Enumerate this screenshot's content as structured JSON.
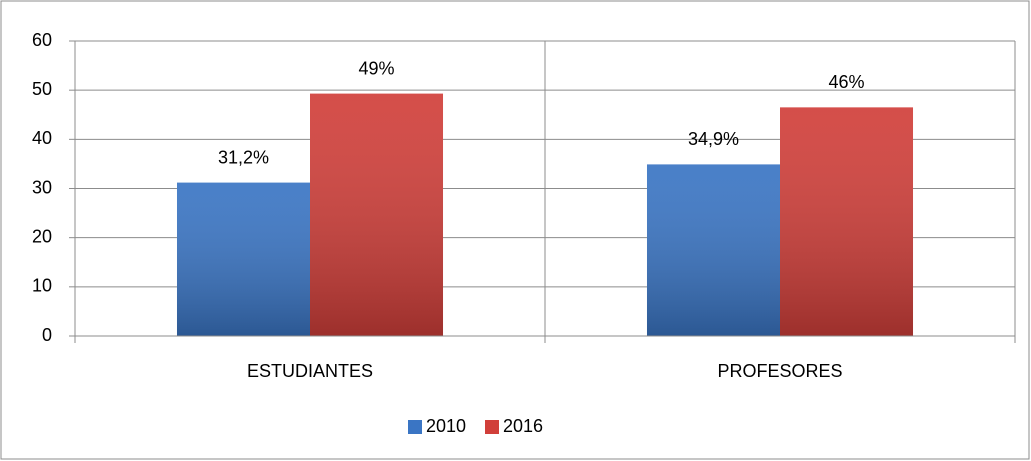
{
  "chart_data": {
    "type": "bar",
    "categories": [
      "ESTUDIANTES",
      "PROFESORES"
    ],
    "series": [
      {
        "name": "2010",
        "color": "#3a75c4",
        "values": [
          31.2,
          34.9
        ],
        "value_labels": [
          "31,2%",
          "34,9%"
        ]
      },
      {
        "name": "2016",
        "color": "#d13f3a",
        "values": [
          49.3,
          46.5
        ],
        "value_labels": [
          "49%",
          "46%"
        ]
      }
    ],
    "ylim": [
      0,
      60
    ],
    "yticks": [
      0,
      10,
      20,
      30,
      40,
      50,
      60
    ],
    "grid": true,
    "legend": "bottom"
  }
}
